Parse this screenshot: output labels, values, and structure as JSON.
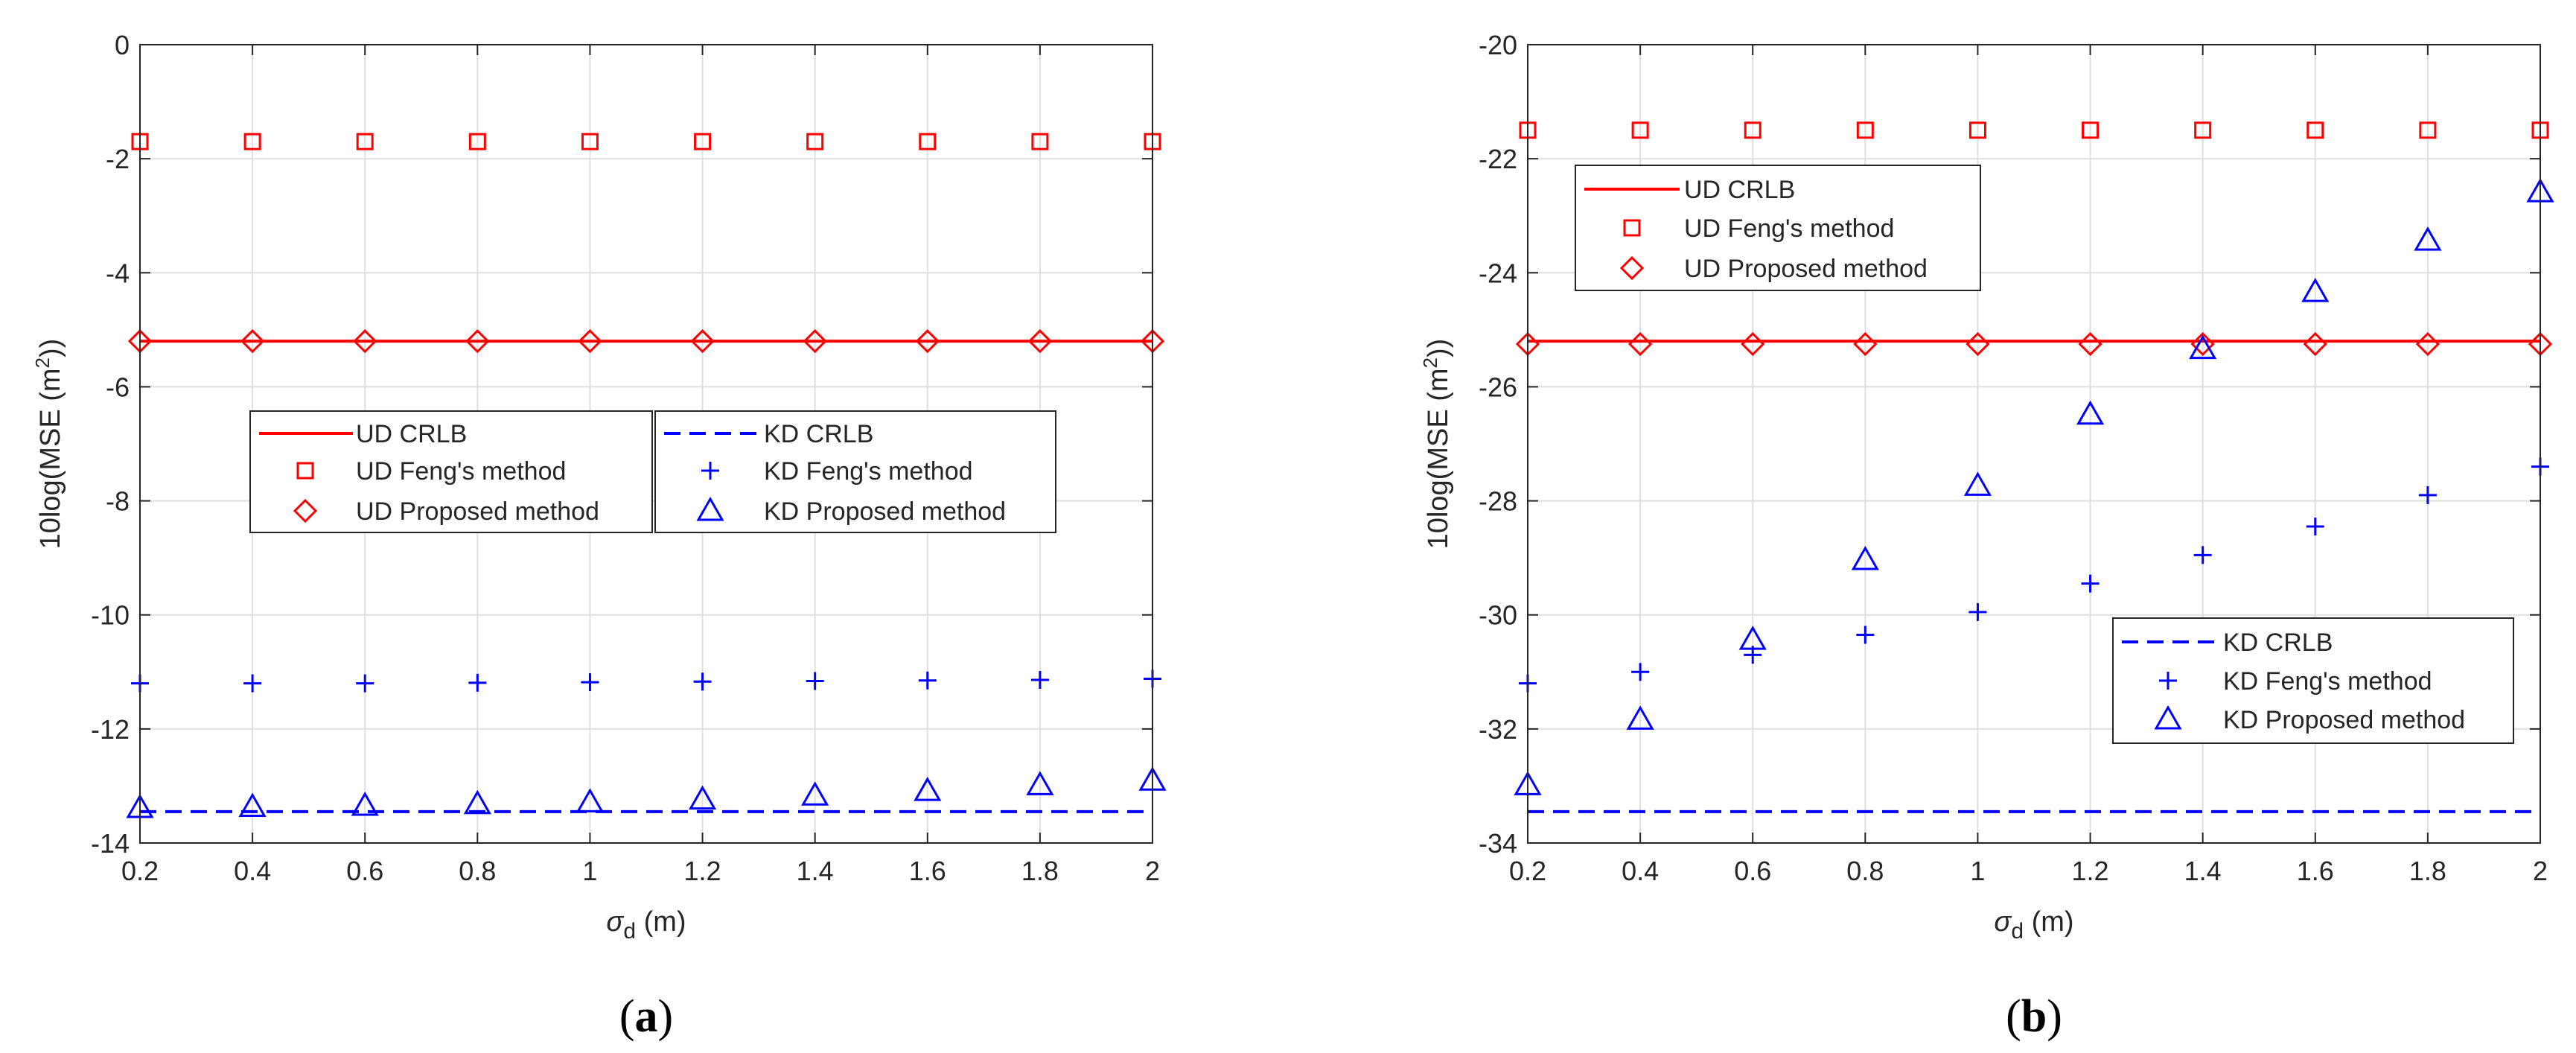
{
  "figure": {
    "panels": [
      {
        "label_open": "(",
        "label_letter": "a",
        "label_close": ")"
      },
      {
        "label_open": "(",
        "label_letter": "b",
        "label_close": ")"
      }
    ]
  },
  "chart_data": [
    {
      "type": "scatter",
      "panel": "a",
      "title": "",
      "xlabel": "σd (m)",
      "ylabel": "10log(MSE (m2))",
      "xlabel_parts": {
        "symbol": "σ",
        "subscript": "d",
        "unit": " (m)"
      },
      "ylabel_parts": {
        "prefix": "10log(MSE (m",
        "superscript": "2",
        "suffix": "))"
      },
      "xlim": [
        0.2,
        2
      ],
      "ylim": [
        -14,
        0
      ],
      "grid": true,
      "xticks": [
        0.2,
        0.4,
        0.6,
        0.8,
        1,
        1.2,
        1.4,
        1.6,
        1.8,
        2
      ],
      "xtick_labels": [
        "0.2",
        "0.4",
        "0.6",
        "0.8",
        "1",
        "1.2",
        "1.4",
        "1.6",
        "1.8",
        "2"
      ],
      "yticks": [
        -14,
        -12,
        -10,
        -8,
        -6,
        -4,
        -2,
        0
      ],
      "ytick_labels": [
        "-14",
        "-12",
        "-10",
        "-8",
        "-6",
        "-4",
        "-2",
        "0"
      ],
      "x": [
        0.2,
        0.4,
        0.6,
        0.8,
        1.0,
        1.2,
        1.4,
        1.6,
        1.8,
        2.0
      ],
      "series": [
        {
          "name": "UD CRLB",
          "style": "line-solid",
          "color": "#ff0000",
          "values": [
            -5.2,
            -5.2,
            -5.2,
            -5.2,
            -5.2,
            -5.2,
            -5.2,
            -5.2,
            -5.2,
            -5.2
          ]
        },
        {
          "name": "UD Feng's method",
          "style": "marker-square",
          "color": "#ff0000",
          "values": [
            -1.7,
            -1.7,
            -1.7,
            -1.7,
            -1.7,
            -1.7,
            -1.7,
            -1.7,
            -1.7,
            -1.7
          ]
        },
        {
          "name": "UD Proposed method",
          "style": "marker-diamond",
          "color": "#ff0000",
          "values": [
            -5.2,
            -5.2,
            -5.2,
            -5.2,
            -5.2,
            -5.2,
            -5.2,
            -5.2,
            -5.2,
            -5.2
          ]
        },
        {
          "name": "KD CRLB",
          "style": "line-dashed",
          "color": "#0000ff",
          "values": [
            -13.45,
            -13.45,
            -13.45,
            -13.45,
            -13.45,
            -13.45,
            -13.45,
            -13.45,
            -13.45,
            -13.45
          ]
        },
        {
          "name": "KD Feng's method",
          "style": "marker-plus",
          "color": "#0000ff",
          "values": [
            -11.2,
            -11.2,
            -11.2,
            -11.19,
            -11.18,
            -11.17,
            -11.16,
            -11.15,
            -11.14,
            -11.12
          ]
        },
        {
          "name": "KD Proposed method",
          "style": "marker-triangle",
          "color": "#0000ff",
          "values": [
            -13.4,
            -13.38,
            -13.36,
            -13.33,
            -13.3,
            -13.25,
            -13.18,
            -13.1,
            -13.0,
            -12.92
          ]
        }
      ],
      "legends": [
        {
          "placement": "center-left",
          "entries": [
            "UD CRLB",
            "UD Feng's method",
            "UD Proposed method"
          ]
        },
        {
          "placement": "center",
          "entries": [
            "KD CRLB",
            "KD Feng's method",
            "KD Proposed method"
          ]
        }
      ]
    },
    {
      "type": "scatter",
      "panel": "b",
      "title": "",
      "xlabel": "σd (m)",
      "ylabel": "10log(MSE (m2))",
      "xlabel_parts": {
        "symbol": "σ",
        "subscript": "d",
        "unit": " (m)"
      },
      "ylabel_parts": {
        "prefix": "10log(MSE (m",
        "superscript": "2",
        "suffix": "))"
      },
      "xlim": [
        0.2,
        2
      ],
      "ylim": [
        -34,
        -20
      ],
      "grid": true,
      "xticks": [
        0.2,
        0.4,
        0.6,
        0.8,
        1,
        1.2,
        1.4,
        1.6,
        1.8,
        2
      ],
      "xtick_labels": [
        "0.2",
        "0.4",
        "0.6",
        "0.8",
        "1",
        "1.2",
        "1.4",
        "1.6",
        "1.8",
        "2"
      ],
      "yticks": [
        -34,
        -32,
        -30,
        -28,
        -26,
        -24,
        -22,
        -20
      ],
      "ytick_labels": [
        "-34",
        "-32",
        "-30",
        "-28",
        "-26",
        "-24",
        "-22",
        "-20"
      ],
      "x": [
        0.2,
        0.4,
        0.6,
        0.8,
        1.0,
        1.2,
        1.4,
        1.6,
        1.8,
        2.0
      ],
      "series": [
        {
          "name": "UD CRLB",
          "style": "line-solid",
          "color": "#ff0000",
          "values": [
            -25.2,
            -25.2,
            -25.2,
            -25.2,
            -25.2,
            -25.2,
            -25.2,
            -25.2,
            -25.2,
            -25.2
          ]
        },
        {
          "name": "UD Feng's method",
          "style": "marker-square",
          "color": "#ff0000",
          "values": [
            -21.5,
            -21.5,
            -21.5,
            -21.5,
            -21.5,
            -21.5,
            -21.5,
            -21.5,
            -21.5,
            -21.5
          ]
        },
        {
          "name": "UD Proposed method",
          "style": "marker-diamond",
          "color": "#ff0000",
          "values": [
            -25.25,
            -25.25,
            -25.25,
            -25.25,
            -25.25,
            -25.25,
            -25.25,
            -25.25,
            -25.25,
            -25.25
          ]
        },
        {
          "name": "KD CRLB",
          "style": "line-dashed",
          "color": "#0000ff",
          "values": [
            -33.45,
            -33.45,
            -33.45,
            -33.45,
            -33.45,
            -33.45,
            -33.45,
            -33.45,
            -33.45,
            -33.45
          ]
        },
        {
          "name": "KD Feng's method",
          "style": "marker-plus",
          "color": "#0000ff",
          "values": [
            -31.2,
            -31.0,
            -30.7,
            -30.35,
            -29.95,
            -29.45,
            -28.95,
            -28.45,
            -27.9,
            -27.4
          ]
        },
        {
          "name": "KD Proposed method",
          "style": "marker-triangle",
          "color": "#0000ff",
          "values": [
            -33.0,
            -31.85,
            -30.45,
            -29.05,
            -27.75,
            -26.5,
            -25.35,
            -24.35,
            -23.45,
            -22.6
          ]
        }
      ],
      "legends": [
        {
          "placement": "top-left",
          "entries": [
            "UD CRLB",
            "UD Feng's method",
            "UD Proposed method"
          ]
        },
        {
          "placement": "bottom-right",
          "entries": [
            "KD CRLB",
            "KD Feng's method",
            "KD Proposed method"
          ]
        }
      ]
    }
  ]
}
